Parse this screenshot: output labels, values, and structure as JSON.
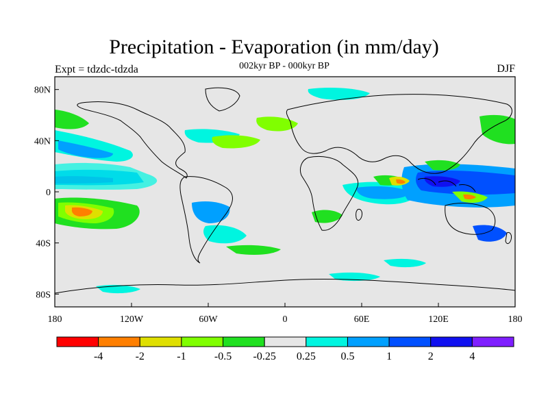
{
  "header": {
    "title": "Precipitation - Evaporation (in mm/day)",
    "subtitle": "002kyr BP - 000kyr BP",
    "experiment": "Expt = tdzdc-tdzda",
    "season": "DJF"
  },
  "map": {
    "ocean_background": "#e6e6e6",
    "x_ticks": [
      {
        "lon": -180,
        "label": "180"
      },
      {
        "lon": -120,
        "label": "120W"
      },
      {
        "lon": -60,
        "label": "60W"
      },
      {
        "lon": 0,
        "label": "0"
      },
      {
        "lon": 60,
        "label": "60E"
      },
      {
        "lon": 120,
        "label": "120E"
      },
      {
        "lon": 180,
        "label": "180"
      }
    ],
    "y_ticks": [
      {
        "lat": 80,
        "label": "80N"
      },
      {
        "lat": 40,
        "label": "40N"
      },
      {
        "lat": 0,
        "label": "0"
      },
      {
        "lat": -40,
        "label": "40S"
      },
      {
        "lat": -80,
        "label": "80S"
      }
    ]
  },
  "colorbar": {
    "colors": [
      "#ff0000",
      "#ff7f00",
      "#dfdf00",
      "#80ff00",
      "#20e020",
      "#e6e6e6",
      "#00f5e0",
      "#00a0ff",
      "#0050ff",
      "#1010f0",
      "#7f1fff"
    ],
    "labels": [
      "-4",
      "-2",
      "-1",
      "-0.5",
      "-0.25",
      "0.25",
      "0.5",
      "1",
      "2",
      "4"
    ]
  }
}
